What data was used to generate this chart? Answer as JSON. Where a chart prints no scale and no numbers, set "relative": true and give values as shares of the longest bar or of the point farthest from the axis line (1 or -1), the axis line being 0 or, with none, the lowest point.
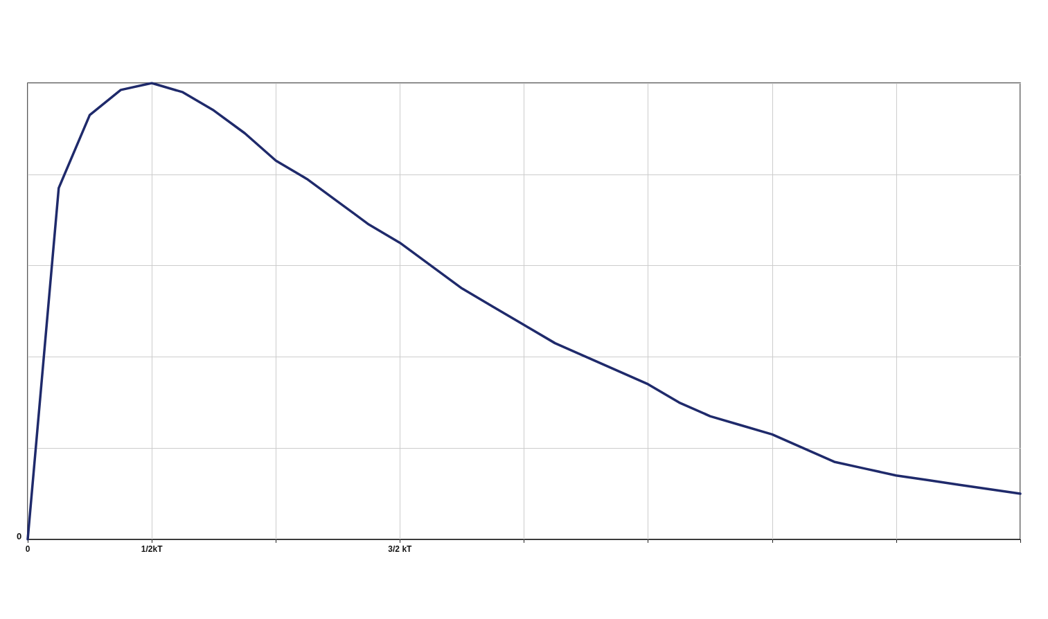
{
  "chart_data": {
    "type": "line",
    "relative": true,
    "categories": [
      "0",
      null,
      null,
      null,
      "1/2kT",
      null,
      null,
      null,
      null,
      null,
      null,
      null,
      "3/2 kT",
      null,
      null,
      null,
      null,
      null,
      null,
      null,
      null,
      null,
      null,
      null,
      null,
      null,
      null,
      null,
      null,
      null,
      null,
      null,
      null
    ],
    "series": [
      {
        "color": "#1f2a6b",
        "values": [
          0,
          0.77,
          0.93,
          0.985,
          1.0,
          0.98,
          0.94,
          0.89,
          0.83,
          0.79,
          0.74,
          0.69,
          0.65,
          0.6,
          0.55,
          0.51,
          0.47,
          0.43,
          0.4,
          0.37,
          0.34,
          0.3,
          0.27,
          0.25,
          0.23,
          0.2,
          0.17,
          0.155,
          0.14,
          0.13,
          0.12,
          0.11,
          0.1
        ]
      }
    ],
    "annotations": [
      "0"
    ],
    "grid": true,
    "marker": "none",
    "line_style": "solid"
  }
}
